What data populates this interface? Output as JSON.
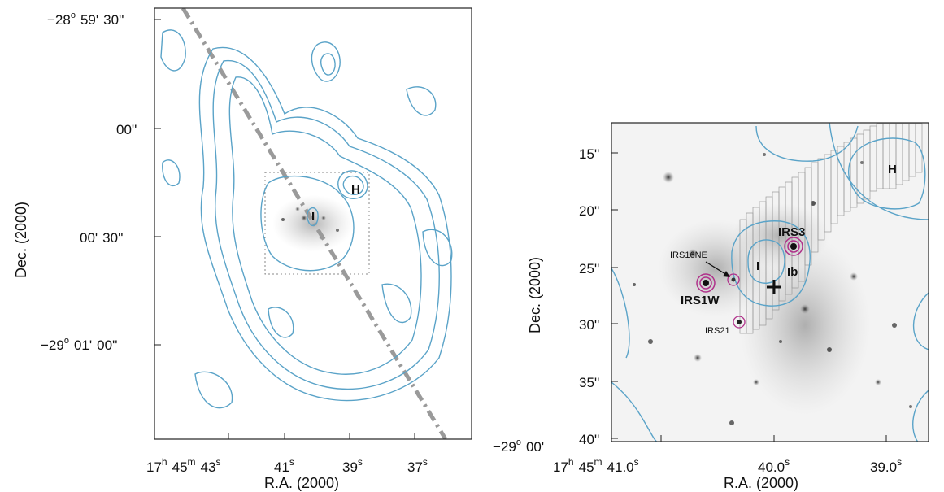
{
  "left_panel": {
    "y_labels": [
      {
        "deg": "−28",
        "min": "59'",
        "sec": "30''"
      },
      {
        "deg": "",
        "min": "",
        "sec": "00''"
      },
      {
        "deg": "",
        "min": "00'",
        "sec": "30''"
      },
      {
        "deg": "−29",
        "min": "01'",
        "sec": "00''"
      }
    ],
    "x_labels": [
      {
        "h": "17",
        "m": "45",
        "s": "43"
      },
      {
        "s": "41"
      },
      {
        "s": "39"
      },
      {
        "s": "37"
      }
    ],
    "xlabel": "R.A. (2000)",
    "ylabel": "Dec. (2000)",
    "markers": {
      "H": "H",
      "I": "I"
    }
  },
  "right_panel": {
    "y_ticks": [
      "15''",
      "20''",
      "25''",
      "30''",
      "35''",
      "40''"
    ],
    "y_origin": {
      "deg": "−29",
      "min": "00'"
    },
    "x_labels": [
      {
        "h": "17",
        "m": "45",
        "s": "41.0"
      },
      {
        "s": "40.0"
      },
      {
        "s": "39.0"
      }
    ],
    "xlabel": "R.A. (2000)",
    "ylabel": "Dec. (2000)",
    "sources": {
      "irs3": "IRS3",
      "irs1w": "IRS1W",
      "irs16ne": "IRS16NE",
      "irs21": "IRS21",
      "I": "I",
      "Ib": "Ib",
      "H": "H"
    }
  },
  "colors": {
    "contour": "#5aa3c8",
    "source_ring": "#b0308a",
    "guide_line": "#9a9a9a"
  }
}
